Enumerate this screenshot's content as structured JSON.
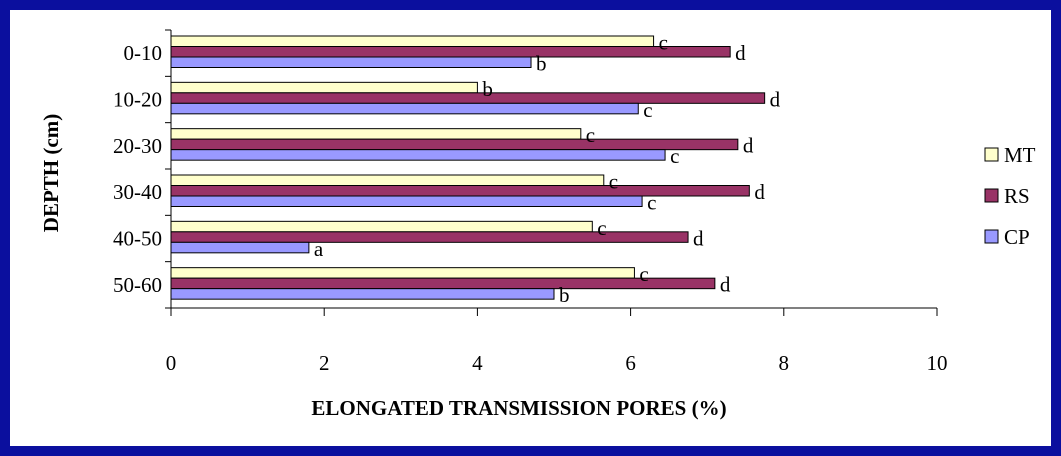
{
  "chart_data": {
    "type": "bar",
    "orientation": "horizontal",
    "xlabel": "ELONGATED TRANSMISSION PORES (%)",
    "ylabel": "DEPTH (cm)",
    "xlim": [
      0,
      10
    ],
    "xticks": [
      "0",
      "2",
      "4",
      "6",
      "8",
      "10"
    ],
    "categories": [
      "0-10",
      "10-20",
      "20-30",
      "30-40",
      "40-50",
      "50-60"
    ],
    "series": [
      {
        "name": "MT",
        "color": "#ffffcc",
        "values": [
          6.3,
          4.0,
          5.35,
          5.65,
          5.5,
          6.05
        ],
        "labels": [
          "c",
          "b",
          "c",
          "c",
          "c",
          "c"
        ]
      },
      {
        "name": "RS",
        "color": "#993366",
        "values": [
          7.3,
          7.75,
          7.4,
          7.55,
          6.75,
          7.1
        ],
        "labels": [
          "d",
          "d",
          "d",
          "d",
          "d",
          "d"
        ]
      },
      {
        "name": "CP",
        "color": "#9999ff",
        "values": [
          4.7,
          6.1,
          6.45,
          6.15,
          1.8,
          5.0
        ],
        "labels": [
          "b",
          "c",
          "c",
          "c",
          "a",
          "b"
        ]
      }
    ],
    "legend": [
      "MT",
      "RS",
      "CP"
    ],
    "legend_position": "right",
    "grid": false
  }
}
